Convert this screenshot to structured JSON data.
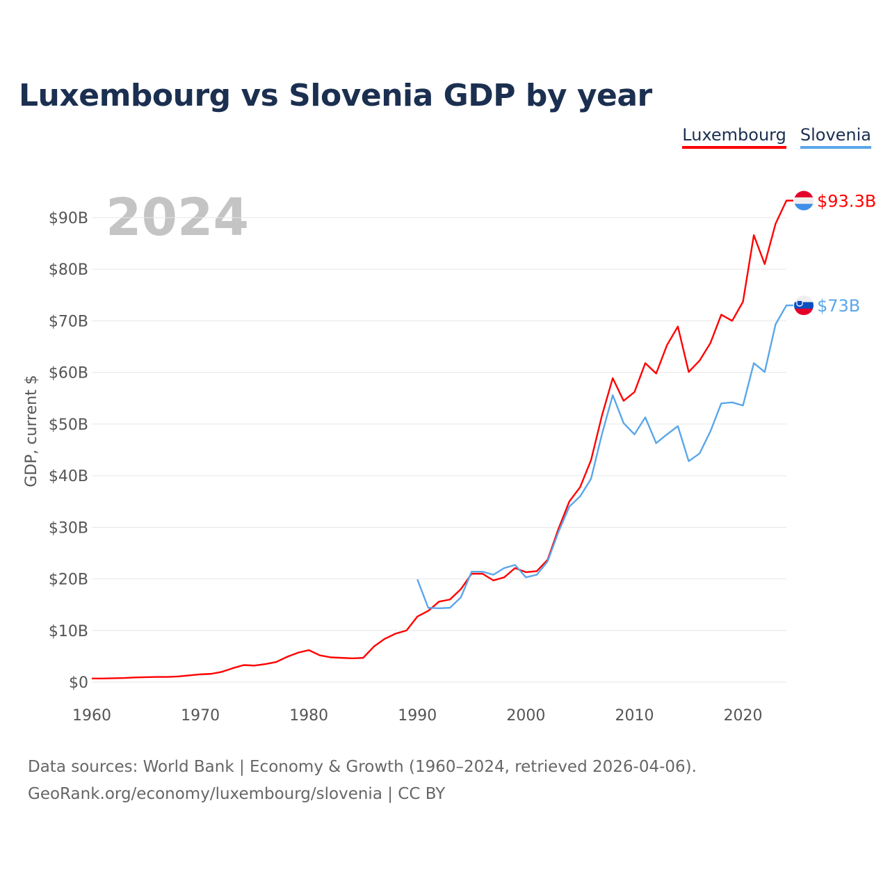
{
  "title": "Luxembourg vs Slovenia GDP by year",
  "footer": {
    "line1": "Data sources: World Bank | Economy & Growth (1960–2024, retrieved 2026-04-06).",
    "line2": "GeoRank.org/economy/luxembourg/slovenia | CC BY"
  },
  "chart_data": {
    "type": "line",
    "title": "Luxembourg vs Slovenia GDP by year",
    "year_label": "2024",
    "xlabel": "",
    "ylabel": "GDP, current $",
    "xlim": [
      1960,
      2024
    ],
    "ylim": [
      0,
      90
    ],
    "grid": true,
    "legend_placement": "top-right",
    "x_ticks": [
      "1960",
      "1970",
      "1980",
      "1990",
      "2000",
      "2010",
      "2020"
    ],
    "y_ticks": [
      "$0",
      "$10B",
      "$20B",
      "$30B",
      "$40B",
      "$50B",
      "$60B",
      "$70B",
      "$80B",
      "$90B"
    ],
    "series": [
      {
        "name": "Luxembourg",
        "color": "#ff0000",
        "end_label": "$93.3B",
        "start_year": 1960,
        "values": [
          0.7,
          0.7,
          0.75,
          0.8,
          0.9,
          0.95,
          1.0,
          1.0,
          1.1,
          1.3,
          1.5,
          1.6,
          2.0,
          2.7,
          3.3,
          3.2,
          3.5,
          3.9,
          4.9,
          5.7,
          6.2,
          5.2,
          4.8,
          4.7,
          4.6,
          4.7,
          6.9,
          8.4,
          9.4,
          10.0,
          12.7,
          13.8,
          15.6,
          16.0,
          18.0,
          21.0,
          21.0,
          19.7,
          20.3,
          22.1,
          21.3,
          21.5,
          23.7,
          29.7,
          35.0,
          37.8,
          43.0,
          51.6,
          58.9,
          54.5,
          56.2,
          61.8,
          59.8,
          65.3,
          68.9,
          60.1,
          62.3,
          65.7,
          71.2,
          70.0,
          73.7,
          86.6,
          81.0,
          88.8,
          93.3
        ]
      },
      {
        "name": "Slovenia",
        "color": "#5aa6ea",
        "end_label": "$73B",
        "start_year": 1990,
        "values": [
          19.9,
          14.4,
          14.3,
          14.4,
          16.4,
          21.4,
          21.4,
          20.8,
          22.1,
          22.7,
          20.3,
          20.8,
          23.4,
          29.1,
          34.0,
          36.0,
          39.4,
          48.0,
          55.6,
          50.2,
          48.0,
          51.3,
          46.3,
          48.0,
          49.6,
          42.8,
          44.3,
          48.6,
          54.0,
          54.2,
          53.6,
          61.8,
          60.1,
          69.3,
          73.0
        ]
      }
    ]
  }
}
